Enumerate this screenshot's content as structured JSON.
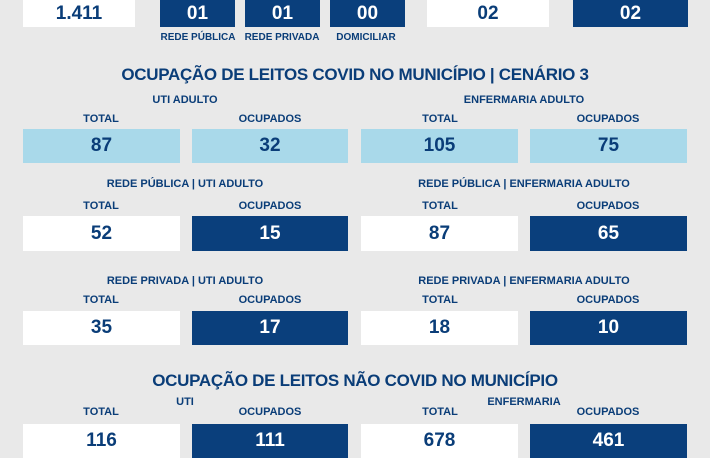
{
  "top": {
    "total": "1.411",
    "rede_publica": "01",
    "rede_privada": "01",
    "domiciliar": "00",
    "box5": "02",
    "box6": "02",
    "labels": [
      "REDE PÚBLICA",
      "REDE PRIVADA",
      "DOMICILIAR"
    ]
  },
  "covid": {
    "title": "OCUPAÇÃO DE LEITOS COVID NO MUNICÍPIO | CENÁRIO 3",
    "total_label": "TOTAL",
    "ocupados_label": "OCUPADOS",
    "groups": [
      {
        "uti": "UTI ADULTO",
        "enf": "ENFERMARIA ADULTO",
        "uti_total": "87",
        "uti_ocup": "32",
        "enf_total": "105",
        "enf_ocup": "75"
      },
      {
        "uti": "REDE PÚBLICA | UTI ADULTO",
        "enf": "REDE PÚBLICA | ENFERMARIA ADULTO",
        "uti_total": "52",
        "uti_ocup": "15",
        "enf_total": "87",
        "enf_ocup": "65"
      },
      {
        "uti": "REDE PRIVADA | UTI ADULTO",
        "enf": "REDE PRIVADA | ENFERMARIA ADULTO",
        "uti_total": "35",
        "uti_ocup": "17",
        "enf_total": "18",
        "enf_ocup": "10"
      }
    ]
  },
  "nao_covid": {
    "title": "OCUPAÇÃO DE LEITOS NÃO COVID NO MUNICÍPIO",
    "uti": "UTI",
    "enf": "ENFERMARIA",
    "uti_total": "116",
    "uti_ocup": "111",
    "enf_total": "678",
    "enf_ocup": "461"
  },
  "colors": {
    "dark_blue": "#0a3f7c",
    "light_blue": "#a9d9ea",
    "background": "#e9e9e9"
  }
}
